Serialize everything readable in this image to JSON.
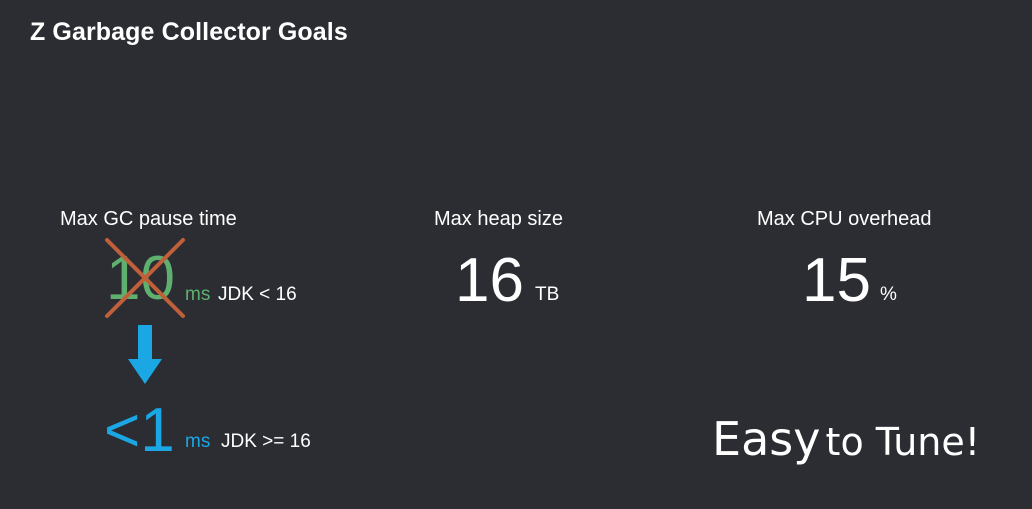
{
  "slide": {
    "title": "Z Garbage Collector Goals"
  },
  "pause": {
    "label": "Max GC pause time",
    "old_value": "10",
    "old_unit": "ms",
    "old_note": "JDK < 16",
    "new_value": "<1",
    "new_unit": "ms",
    "new_note": "JDK >= 16"
  },
  "heap": {
    "label": "Max heap size",
    "value": "16",
    "unit": "TB"
  },
  "cpu": {
    "label": "Max CPU overhead",
    "value": "15",
    "unit": "%"
  },
  "tagline": {
    "word1": "Easy",
    "word2": "to Tune!"
  },
  "colors": {
    "background": "#2b2d33",
    "old_value": "#5fb06e",
    "new_value": "#1aa7e3",
    "cross": "#c0603a",
    "arrow": "#1aa7e3"
  },
  "icons": {
    "cross": "cross-out-icon",
    "arrow": "down-arrow-icon"
  }
}
